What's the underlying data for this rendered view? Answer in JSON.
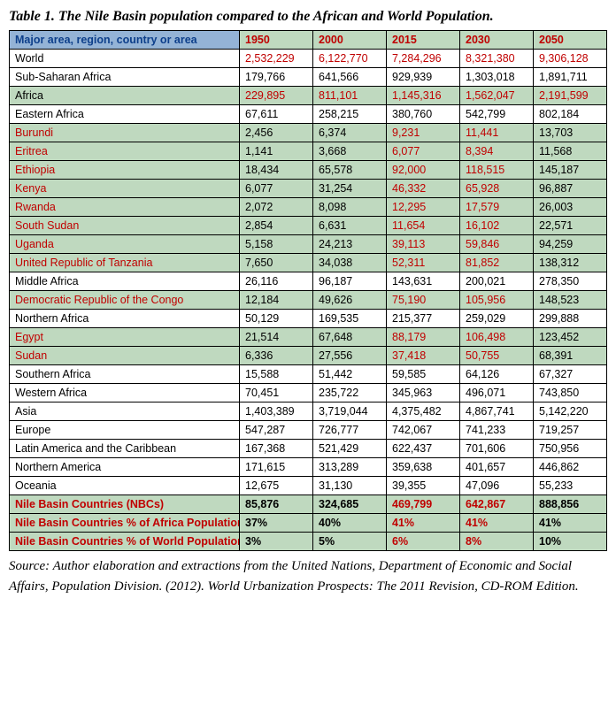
{
  "title": "Table 1. The Nile Basin population compared to the African and World Population.",
  "source": "Source: Author elaboration and extractions from the United Nations, Department of Economic and Social Affairs, Population Division. (2012). World Urbanization Prospects: The 2011 Revision, CD-ROM Edition.",
  "table": {
    "header_bg_first": "#94b3d6",
    "header_bg_rest": "#bfd9bf",
    "row_bg_white": "#ffffff",
    "row_bg_green": "#bfd9bf",
    "text_red": "#c00000",
    "text_black": "#000000",
    "columns": [
      "Major area, region, country or area",
      "1950",
      "2000",
      "2015",
      "2030",
      "2050"
    ],
    "rows": [
      {
        "label": "World",
        "lblColor": "black",
        "values": [
          "2,532,229",
          "6,122,770",
          "7,284,296",
          "8,321,380",
          "9,306,128"
        ],
        "valColor": "red",
        "bg": "white",
        "bold": false
      },
      {
        "label": "Sub-Saharan Africa",
        "lblColor": "black",
        "values": [
          "179,766",
          "641,566",
          "929,939",
          "1,303,018",
          "1,891,711"
        ],
        "valColor": "black",
        "bg": "white",
        "bold": false
      },
      {
        "label": "Africa",
        "lblColor": "black",
        "values": [
          "229,895",
          "811,101",
          "1,145,316",
          "1,562,047",
          "2,191,599"
        ],
        "valColor": "red",
        "bg": "green",
        "bold": false
      },
      {
        "label": "Eastern Africa",
        "lblColor": "black",
        "values": [
          "67,611",
          "258,215",
          "380,760",
          "542,799",
          "802,184"
        ],
        "valColor": "black",
        "bg": "white",
        "bold": false
      },
      {
        "label": "Burundi",
        "lblColor": "red",
        "values": [
          "2,456",
          "6,374",
          "9,231",
          "11,441",
          "13,703"
        ],
        "valColor": "mix",
        "bg": "green",
        "bold": false
      },
      {
        "label": "Eritrea",
        "lblColor": "red",
        "values": [
          "1,141",
          "3,668",
          "6,077",
          "8,394",
          "11,568"
        ],
        "valColor": "mix",
        "bg": "green",
        "bold": false
      },
      {
        "label": "Ethiopia",
        "lblColor": "red",
        "values": [
          "18,434",
          "65,578",
          "92,000",
          "118,515",
          "145,187"
        ],
        "valColor": "mix",
        "bg": "green",
        "bold": false
      },
      {
        "label": "Kenya",
        "lblColor": "red",
        "values": [
          "6,077",
          "31,254",
          "46,332",
          "65,928",
          "96,887"
        ],
        "valColor": "mix",
        "bg": "green",
        "bold": false
      },
      {
        "label": "Rwanda",
        "lblColor": "red",
        "values": [
          "2,072",
          "8,098",
          "12,295",
          "17,579",
          "26,003"
        ],
        "valColor": "mix",
        "bg": "green",
        "bold": false
      },
      {
        "label": "South Sudan",
        "lblColor": "red",
        "values": [
          "2,854",
          "6,631",
          "11,654",
          "16,102",
          "22,571"
        ],
        "valColor": "mix",
        "bg": "green",
        "bold": false
      },
      {
        "label": "Uganda",
        "lblColor": "red",
        "values": [
          "5,158",
          "24,213",
          "39,113",
          "59,846",
          "94,259"
        ],
        "valColor": "mix",
        "bg": "green",
        "bold": false
      },
      {
        "label": "United Republic of Tanzania",
        "lblColor": "red",
        "values": [
          "7,650",
          "34,038",
          "52,311",
          "81,852",
          "138,312"
        ],
        "valColor": "mix",
        "bg": "green",
        "bold": false
      },
      {
        "label": "Middle Africa",
        "lblColor": "black",
        "values": [
          "26,116",
          "96,187",
          "143,631",
          "200,021",
          "278,350"
        ],
        "valColor": "black",
        "bg": "white",
        "bold": false
      },
      {
        "label": "Democratic Republic of the Congo",
        "lblColor": "red",
        "values": [
          "12,184",
          "49,626",
          "75,190",
          "105,956",
          "148,523"
        ],
        "valColor": "mix",
        "bg": "green",
        "bold": false
      },
      {
        "label": "Northern Africa",
        "lblColor": "black",
        "values": [
          "50,129",
          "169,535",
          "215,377",
          "259,029",
          "299,888"
        ],
        "valColor": "black",
        "bg": "white",
        "bold": false
      },
      {
        "label": "Egypt",
        "lblColor": "red",
        "values": [
          "21,514",
          "67,648",
          "88,179",
          "106,498",
          "123,452"
        ],
        "valColor": "mix",
        "bg": "green",
        "bold": false
      },
      {
        "label": "Sudan",
        "lblColor": "red",
        "values": [
          "6,336",
          "27,556",
          "37,418",
          "50,755",
          "68,391"
        ],
        "valColor": "mix",
        "bg": "green",
        "bold": false
      },
      {
        "label": "Southern Africa",
        "lblColor": "black",
        "values": [
          "15,588",
          "51,442",
          "59,585",
          "64,126",
          "67,327"
        ],
        "valColor": "black",
        "bg": "white",
        "bold": false
      },
      {
        "label": "Western Africa",
        "lblColor": "black",
        "values": [
          "70,451",
          "235,722",
          "345,963",
          "496,071",
          "743,850"
        ],
        "valColor": "black",
        "bg": "white",
        "bold": false
      },
      {
        "label": "Asia",
        "lblColor": "black",
        "values": [
          "1,403,389",
          "3,719,044",
          "4,375,482",
          "4,867,741",
          "5,142,220"
        ],
        "valColor": "black",
        "bg": "white",
        "bold": false
      },
      {
        "label": "Europe",
        "lblColor": "black",
        "values": [
          "547,287",
          "726,777",
          "742,067",
          "741,233",
          "719,257"
        ],
        "valColor": "black",
        "bg": "white",
        "bold": false
      },
      {
        "label": "Latin America and the Caribbean",
        "lblColor": "black",
        "values": [
          "167,368",
          "521,429",
          "622,437",
          "701,606",
          "750,956"
        ],
        "valColor": "black",
        "bg": "white",
        "bold": false
      },
      {
        "label": "Northern America",
        "lblColor": "black",
        "values": [
          "171,615",
          "313,289",
          "359,638",
          "401,657",
          "446,862"
        ],
        "valColor": "black",
        "bg": "white",
        "bold": false
      },
      {
        "label": "Oceania",
        "lblColor": "black",
        "values": [
          "12,675",
          "31,130",
          "39,355",
          "47,096",
          "55,233"
        ],
        "valColor": "black",
        "bg": "white",
        "bold": false
      },
      {
        "label": "Nile Basin Countries (NBCs)",
        "lblColor": "red",
        "values": [
          "85,876",
          "324,685",
          "469,799",
          "642,867",
          "888,856"
        ],
        "valColor": "mixbold",
        "bg": "green",
        "bold": true
      },
      {
        "label": "Nile Basin Countries % of Africa Population",
        "lblColor": "red",
        "values": [
          "37%",
          "40%",
          "41%",
          "41%",
          "41%"
        ],
        "valColor": "mixbold",
        "bg": "green",
        "bold": true
      },
      {
        "label": "Nile Basin Countries % of World Population",
        "lblColor": "red",
        "values": [
          "3%",
          "5%",
          "6%",
          "8%",
          "10%"
        ],
        "valColor": "mixbold",
        "bg": "green",
        "bold": true
      }
    ]
  }
}
